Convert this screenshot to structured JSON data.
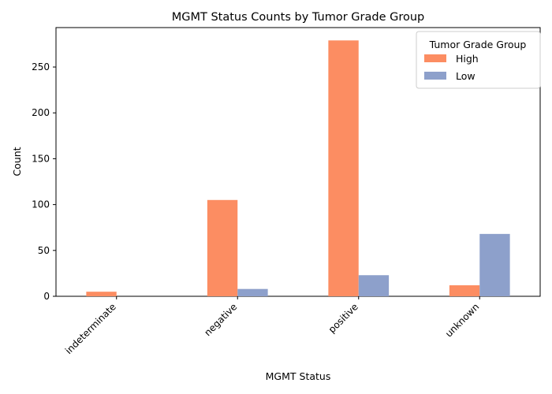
{
  "chart_data": {
    "type": "bar",
    "title": "MGMT Status Counts by Tumor Grade Group",
    "xlabel": "MGMT Status",
    "ylabel": "Count",
    "categories": [
      "indeterminate",
      "negative",
      "positive",
      "unknown"
    ],
    "series": [
      {
        "name": "High",
        "values": [
          5,
          105,
          279,
          12
        ],
        "color": "#fc8d62"
      },
      {
        "name": "Low",
        "values": [
          0,
          8,
          23,
          68
        ],
        "color": "#8da0cb"
      }
    ],
    "ylim": [
      0,
      293
    ],
    "yticks": [
      0,
      50,
      100,
      150,
      200,
      250
    ],
    "grid": false,
    "legend": {
      "title": "Tumor Grade Group",
      "position": "top-right"
    }
  }
}
